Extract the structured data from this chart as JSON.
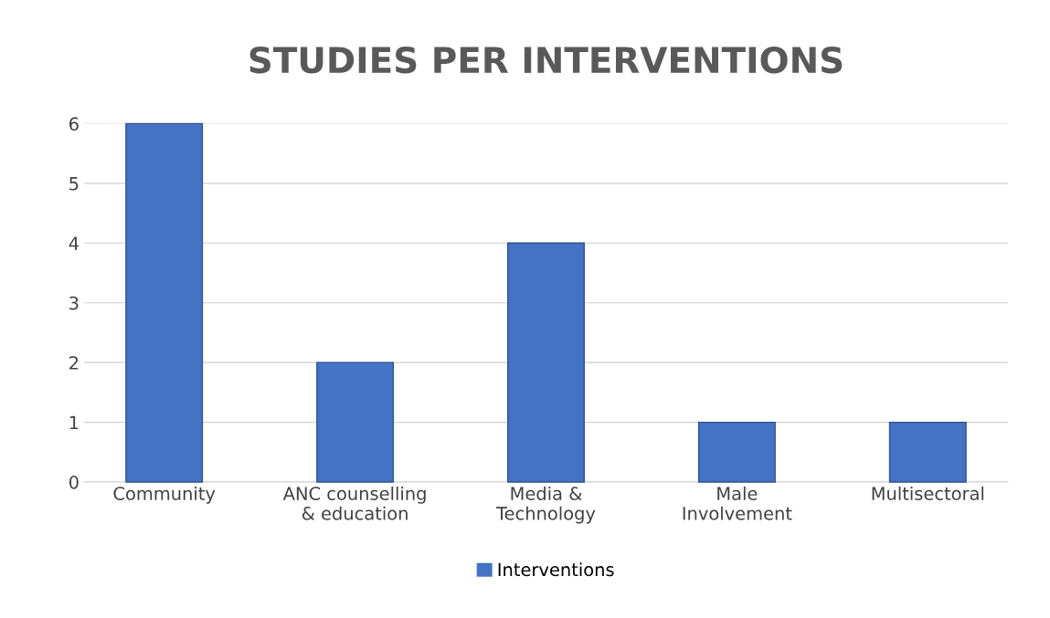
{
  "chart_data": {
    "type": "bar",
    "title": "STUDIES PER INTERVENTIONS",
    "categories": [
      "Community",
      "ANC counselling\n& education",
      "Media &\nTechnology",
      "Male\nInvolvement",
      "Multisectoral"
    ],
    "series": [
      {
        "name": "Interventions",
        "color": "#4472c4",
        "values": [
          6,
          2,
          4,
          1,
          1
        ]
      }
    ],
    "ylim": [
      0,
      6
    ],
    "yticks": [
      0,
      1,
      2,
      3,
      4,
      5,
      6
    ],
    "grid": "y",
    "legend": "bottom"
  }
}
